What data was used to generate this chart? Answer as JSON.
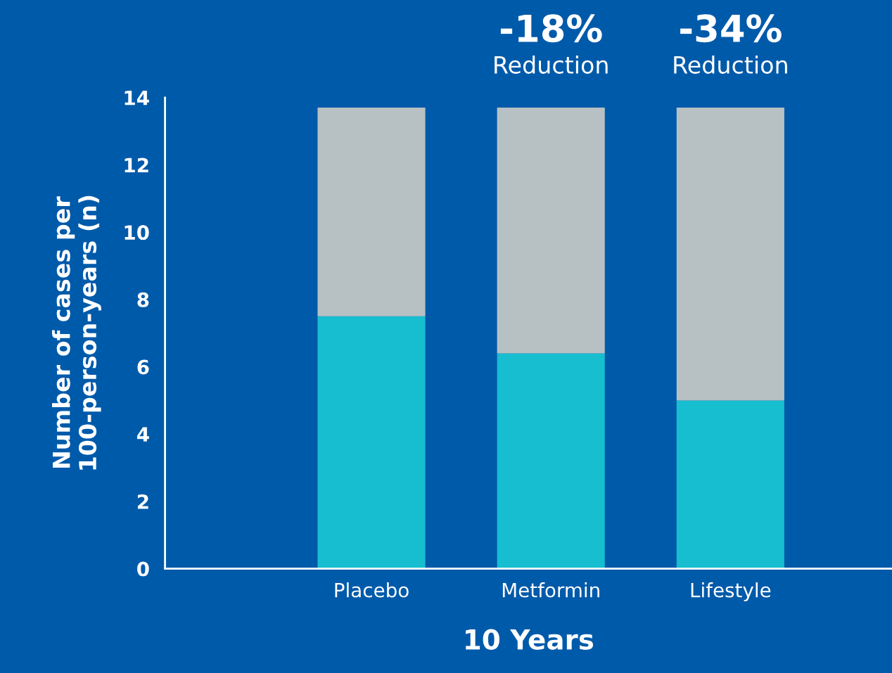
{
  "chart_data": {
    "type": "bar",
    "stacked": true,
    "categories": [
      "Placebo",
      "Metformin",
      "Lifestyle"
    ],
    "series": [
      {
        "color": "#17bed0",
        "values": [
          7.5,
          6.4,
          5.0
        ]
      },
      {
        "color": "#b7c1c4",
        "values": [
          6.2,
          7.3,
          8.7
        ]
      }
    ],
    "xlabel": "10 Years",
    "ylabel": "Number of cases per\n100-person-years (n)",
    "ylim": [
      0,
      14
    ],
    "yticks": [
      0,
      2,
      4,
      6,
      8,
      10,
      12,
      14
    ],
    "annotations": [
      "-18%",
      "Reduction",
      "-34%",
      "Reduction"
    ],
    "grid": false,
    "legend": false
  }
}
